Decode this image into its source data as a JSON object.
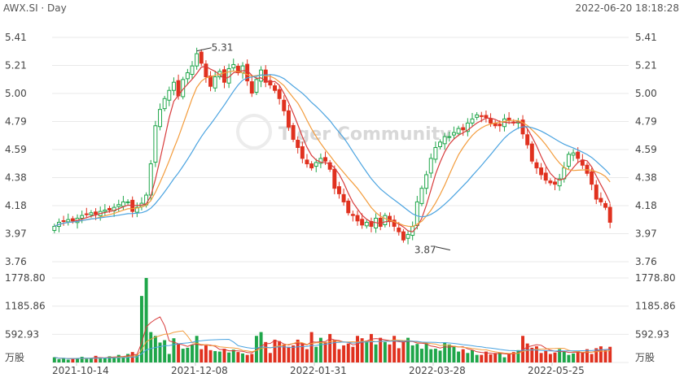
{
  "header": {
    "title": "AWX.SI · Day",
    "timestamp": "2022-06-20 18:18:28"
  },
  "watermark": "Tiger Community",
  "chart_data": [
    {
      "type": "candlestick",
      "name": "price",
      "ylim": [
        3.76,
        5.41
      ],
      "y_ticks": [
        "5.41",
        "5.21",
        "5.00",
        "4.79",
        "4.59",
        "4.38",
        "4.18",
        "3.97",
        "3.76"
      ],
      "x_ticks": [
        "2021-10-14",
        "2021-12-08",
        "2022-01-31",
        "2022-03-28",
        "2022-05-25"
      ],
      "annotations": [
        {
          "text": "5.31",
          "value": 5.31,
          "index": 31
        },
        {
          "text": "3.87",
          "value": 3.87,
          "index": 83
        }
      ],
      "colors": {
        "up": "#1fa64a",
        "down": "#e0311f",
        "ma_short": "#d83c3c",
        "ma_mid": "#f39c3c",
        "ma_long": "#4aa3e0"
      },
      "close": [
        4.02,
        4.05,
        4.06,
        4.07,
        4.06,
        4.08,
        4.1,
        4.11,
        4.12,
        4.11,
        4.13,
        4.14,
        4.14,
        4.16,
        4.18,
        4.2,
        4.2,
        4.13,
        4.16,
        4.19,
        4.25,
        4.48,
        4.76,
        4.88,
        4.96,
        5.02,
        5.08,
        4.98,
        5.1,
        5.15,
        5.2,
        5.29,
        5.22,
        5.12,
        5.05,
        5.12,
        5.16,
        5.08,
        5.18,
        5.21,
        5.15,
        5.2,
        5.09,
        5.0,
        5.1,
        5.17,
        5.08,
        5.06,
        5.02,
        4.96,
        4.87,
        4.75,
        4.66,
        4.6,
        4.52,
        4.48,
        4.45,
        4.49,
        4.52,
        4.5,
        4.44,
        4.3,
        4.26,
        4.2,
        4.12,
        4.1,
        4.06,
        4.03,
        4.05,
        4.02,
        4.08,
        4.02,
        4.1,
        4.06,
        4.02,
        3.98,
        3.92,
        3.96,
        4.02,
        4.2,
        4.3,
        4.4,
        4.52,
        4.6,
        4.64,
        4.68,
        4.68,
        4.71,
        4.74,
        4.73,
        4.78,
        4.81,
        4.84,
        4.83,
        4.82,
        4.78,
        4.76,
        4.76,
        4.81,
        4.8,
        4.78,
        4.79,
        4.7,
        4.62,
        4.5,
        4.45,
        4.4,
        4.36,
        4.34,
        4.33,
        4.37,
        4.45,
        4.55,
        4.56,
        4.52,
        4.47,
        4.41,
        4.33,
        4.22,
        4.2,
        4.16,
        4.05
      ]
    },
    {
      "type": "bar",
      "name": "volume",
      "unit": "万股",
      "ylim": [
        0,
        1778.8
      ],
      "y_ticks": [
        "1778.80",
        "1185.86",
        "592.93"
      ],
      "values": [
        110,
        70,
        85,
        60,
        90,
        95,
        120,
        75,
        80,
        140,
        95,
        100,
        130,
        115,
        160,
        125,
        180,
        220,
        160,
        1400,
        1778.8,
        640,
        560,
        420,
        470,
        180,
        510,
        400,
        290,
        310,
        370,
        560,
        280,
        360,
        260,
        240,
        230,
        290,
        210,
        270,
        220,
        190,
        160,
        180,
        560,
        640,
        430,
        200,
        480,
        450,
        380,
        330,
        360,
        480,
        410,
        280,
        640,
        330,
        520,
        430,
        600,
        480,
        280,
        360,
        400,
        330,
        560,
        510,
        460,
        600,
        380,
        520,
        430,
        380,
        560,
        300,
        470,
        520,
        360,
        390,
        290,
        410,
        280,
        290,
        250,
        420,
        380,
        350,
        230,
        280,
        200,
        260,
        160,
        160,
        230,
        170,
        200,
        210,
        110,
        190,
        220,
        260,
        560,
        400,
        310,
        340,
        200,
        260,
        180,
        210,
        280,
        230,
        160,
        190,
        240,
        200,
        280,
        180,
        300,
        340,
        260,
        330
      ]
    }
  ]
}
